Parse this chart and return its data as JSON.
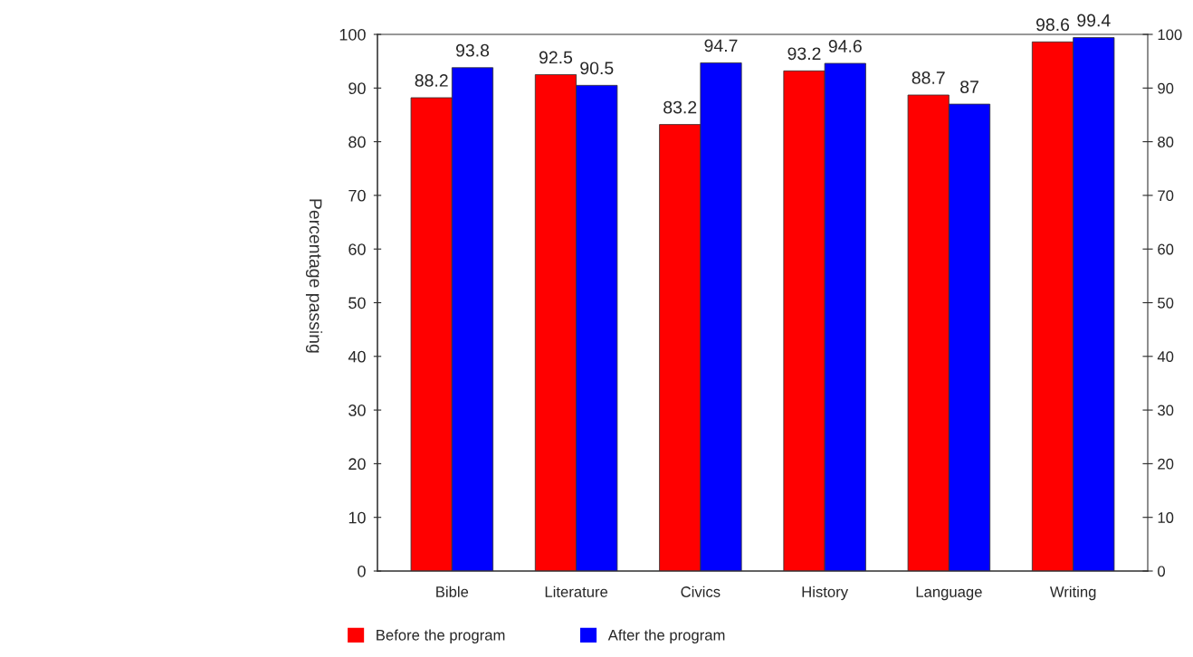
{
  "chart_data": {
    "type": "bar",
    "ylabel": "Percentage passing",
    "categories": [
      "Bible",
      "Literature",
      "Civics",
      "History",
      "Language",
      "Writing"
    ],
    "series": [
      {
        "name": "Before the program",
        "color": "#ff0000",
        "values": [
          88.2,
          92.5,
          83.2,
          93.2,
          88.7,
          98.6
        ],
        "axis": "y2"
      },
      {
        "name": "After the program",
        "color": "#0000ff",
        "values": [
          93.8,
          90.5,
          94.7,
          94.6,
          87,
          99.4
        ],
        "axis": "y2"
      }
    ],
    "ylim": [
      0,
      100
    ],
    "yticks": [
      0,
      10,
      20,
      30,
      40,
      50,
      60,
      70,
      80,
      90,
      100
    ],
    "y2lim": [
      0,
      100
    ],
    "y2ticks": [
      0,
      10,
      20,
      30,
      40,
      50,
      60,
      70,
      80,
      90,
      100
    ],
    "data_labels": true,
    "legend": "bottom",
    "grid": false
  }
}
